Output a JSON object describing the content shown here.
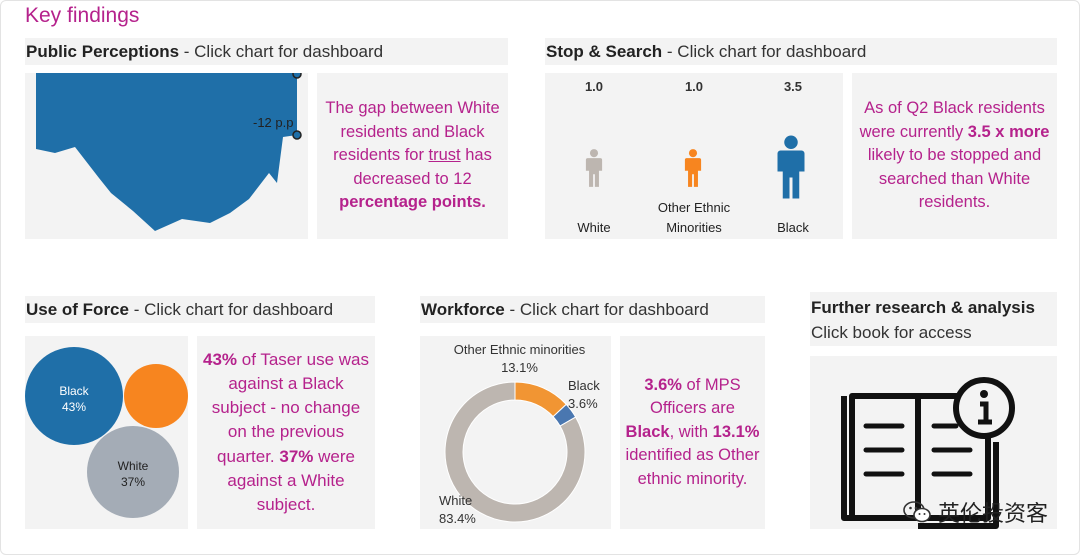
{
  "page_title": "Key findings",
  "colors": {
    "accent": "#b5228c",
    "panel_bg": "#f3f3f3",
    "blue": "#1f6fa8",
    "orange": "#f7851f",
    "grey": "#a4acb6",
    "taupe": "#bdb6b0",
    "donut_orange": "#f19533",
    "donut_blue": "#4a77b0"
  },
  "public": {
    "header_bold": "Public Perceptions",
    "header_rest": " - Click chart for dashboard",
    "chart_label": "-12 p.p",
    "text": {
      "p1": "The gap between White residents and Black residents for ",
      "trust": "trust",
      "p2": " has decreased to 12 ",
      "bold": "percentage points."
    }
  },
  "stop_search": {
    "header_bold": "Stop & Search",
    "header_rest": " - Click chart for dashboard",
    "groups": [
      {
        "label": "White",
        "value": "1.0",
        "color": "#bdb6b0",
        "icon": "person-icon"
      },
      {
        "label": "Other Ethnic Minorities",
        "value": "1.0",
        "color": "#f7851f",
        "icon": "person-icon"
      },
      {
        "label": "Black",
        "value": "3.5",
        "color": "#1f6fa8",
        "icon": "person-icon"
      }
    ],
    "text": {
      "p1": "As of Q2 Black residents were currently ",
      "bold": "3.5 x more",
      "p2": " likely to be stopped and searched than White residents."
    }
  },
  "use_of_force": {
    "header_bold": "Use of Force",
    "header_rest": " - Click chart for dashboard",
    "bubbles": [
      {
        "label": "Black",
        "value": "43%",
        "color": "#1f6fa8"
      },
      {
        "label": "",
        "value": "",
        "color": "#f7851f"
      },
      {
        "label": "White",
        "value": "37%",
        "color": "#a4acb6"
      }
    ],
    "text": {
      "b1": "43%",
      "p1": " of Taser use was against a Black subject - no change on the previous quarter. ",
      "b2": "37%",
      "p2": " were against a White subject."
    }
  },
  "workforce": {
    "header_bold": "Workforce",
    "header_rest": " - Click chart for dashboard",
    "labels": {
      "other_name": "Other Ethnic minorities",
      "other_value": "13.1%",
      "black_name": "Black",
      "black_value": "3.6%",
      "white_name": "White",
      "white_value": "83.4%"
    },
    "text": {
      "b1": "3.6%",
      "p1": " of MPS Officers are ",
      "b2": "Black",
      "p2": ", with ",
      "b3": "13.1%",
      "p3": " identified as Other ethnic minority."
    }
  },
  "research": {
    "title": "Further research & analysis",
    "subtitle": "Click book for access",
    "icon": "book-info-icon"
  },
  "watermark": {
    "text": "英伦投资客",
    "icon": "wechat-icon"
  },
  "chart_data": {
    "type": "pie",
    "categories": [
      "White",
      "Other Ethnic minorities",
      "Black"
    ],
    "values": [
      83.4,
      13.1,
      3.6
    ],
    "colors": [
      "#bdb6b0",
      "#f19533",
      "#4a77b0"
    ],
    "title": "",
    "donut": true
  }
}
